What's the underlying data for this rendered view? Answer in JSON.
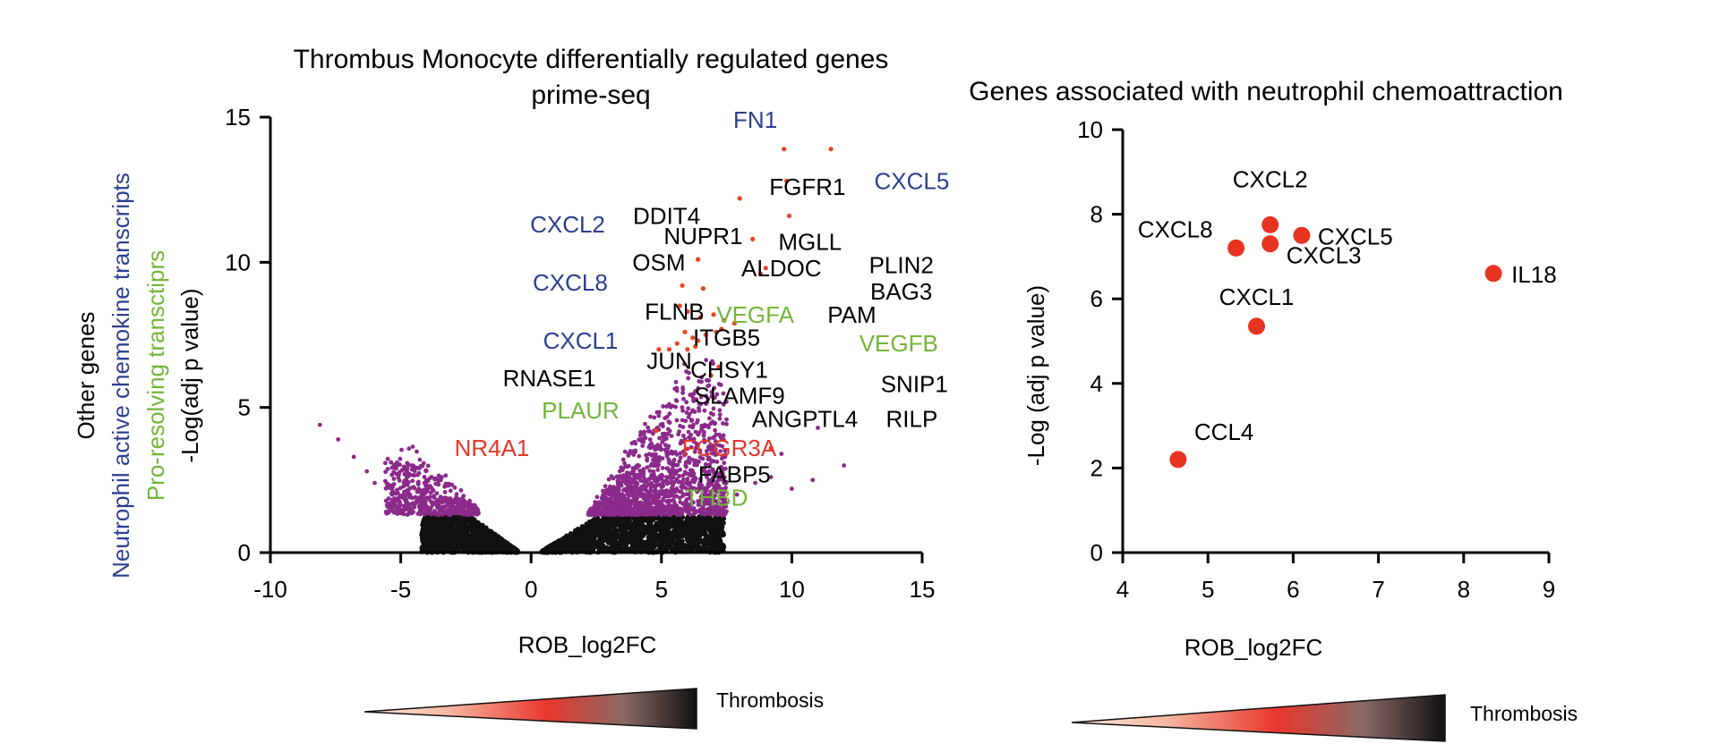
{
  "colors": {
    "axis": "#000000",
    "purple": "#8b2a8b",
    "black_pts": "#111111",
    "orange_pts": "#e8431e",
    "blue": "#2b3f8f",
    "green": "#74b53a",
    "red": "#e0382a",
    "dot": "#e63322"
  },
  "chart_data": [
    {
      "type": "scatter",
      "subtype": "volcano",
      "title": "Thrombus Monocyte differentially regulated genes",
      "subtitle": "prime-seq",
      "xlabel": "ROB_log2FC",
      "ylabel": "-Log(adj p value)",
      "xlim": [
        -10,
        15
      ],
      "ylim": [
        0,
        15
      ],
      "xticks": [
        -10,
        -5,
        0,
        5,
        10,
        15
      ],
      "yticks": [
        0,
        5,
        10,
        15
      ],
      "legend": [
        {
          "label": "Pro-resolving transctiprs",
          "color": "#74b53a"
        },
        {
          "label": "Neutrophil active chemokine transcripts",
          "color": "#2b3f8f"
        },
        {
          "label": "Other genes",
          "color": "#000000"
        }
      ],
      "gene_labels": [
        {
          "text": "FN1",
          "color": "#2b3f8f",
          "x": 8.6,
          "y": 14.9
        },
        {
          "text": "CXCL5",
          "color": "#2b3f8f",
          "x": 14.6,
          "y": 12.8
        },
        {
          "text": "FGFR1",
          "color": "#000000",
          "x": 10.6,
          "y": 12.6
        },
        {
          "text": "DDIT4",
          "color": "#000000",
          "x": 5.2,
          "y": 11.6
        },
        {
          "text": "CXCL2",
          "color": "#2b3f8f",
          "x": 1.4,
          "y": 11.3
        },
        {
          "text": "NUPR1",
          "color": "#000000",
          "x": 6.6,
          "y": 10.9
        },
        {
          "text": "MGLL",
          "color": "#000000",
          "x": 10.7,
          "y": 10.7
        },
        {
          "text": "OSM",
          "color": "#000000",
          "x": 4.9,
          "y": 10.0
        },
        {
          "text": "ALDOC",
          "color": "#000000",
          "x": 9.6,
          "y": 9.8
        },
        {
          "text": "PLIN2",
          "color": "#000000",
          "x": 14.2,
          "y": 9.9
        },
        {
          "text": "CXCL8",
          "color": "#2b3f8f",
          "x": 1.5,
          "y": 9.3
        },
        {
          "text": "BAG3",
          "color": "#000000",
          "x": 14.2,
          "y": 9.0
        },
        {
          "text": "FLNB",
          "color": "#000000",
          "x": 5.5,
          "y": 8.3
        },
        {
          "text": "VEGFA",
          "color": "#74b53a",
          "x": 8.6,
          "y": 8.2
        },
        {
          "text": "PAM",
          "color": "#000000",
          "x": 12.3,
          "y": 8.2
        },
        {
          "text": "CXCL1",
          "color": "#2b3f8f",
          "x": 1.9,
          "y": 7.3
        },
        {
          "text": "ITGB5",
          "color": "#000000",
          "x": 7.5,
          "y": 7.4
        },
        {
          "text": "VEGFB",
          "color": "#74b53a",
          "x": 14.1,
          "y": 7.2
        },
        {
          "text": "JUN",
          "color": "#000000",
          "x": 5.3,
          "y": 6.6
        },
        {
          "text": "CHSY1",
          "color": "#000000",
          "x": 7.6,
          "y": 6.3
        },
        {
          "text": "RNASE1",
          "color": "#000000",
          "x": 0.7,
          "y": 6.0
        },
        {
          "text": "SNIP1",
          "color": "#000000",
          "x": 14.7,
          "y": 5.8
        },
        {
          "text": "SLAMF9",
          "color": "#000000",
          "x": 8.0,
          "y": 5.4
        },
        {
          "text": "PLAUR",
          "color": "#74b53a",
          "x": 1.9,
          "y": 4.9
        },
        {
          "text": "ANGPTL4",
          "color": "#000000",
          "x": 10.5,
          "y": 4.6
        },
        {
          "text": "RILP",
          "color": "#000000",
          "x": 14.6,
          "y": 4.6
        },
        {
          "text": "NR4A1",
          "color": "#e0382a",
          "x": -1.5,
          "y": 3.6
        },
        {
          "text": "FCGR3A",
          "color": "#e0382a",
          "x": 7.6,
          "y": 3.6
        },
        {
          "text": "FABP5",
          "color": "#000000",
          "x": 7.8,
          "y": 2.7
        },
        {
          "text": "THBD",
          "color": "#74b53a",
          "x": 7.1,
          "y": 1.9
        }
      ],
      "gradient_label": "Thrombosis"
    },
    {
      "type": "scatter",
      "title": "Genes associated with neutrophil chemoattraction",
      "xlabel": "ROB_log2FC",
      "ylabel": "-Log (adj p value)",
      "xlim": [
        4,
        9
      ],
      "ylim": [
        0,
        10
      ],
      "xticks": [
        4,
        5,
        6,
        7,
        8,
        9
      ],
      "yticks": [
        0,
        2,
        4,
        6,
        8,
        10
      ],
      "points": [
        {
          "label": "CXCL2",
          "x": 5.73,
          "y": 7.75
        },
        {
          "label": "CXCL8",
          "x": 5.33,
          "y": 7.2
        },
        {
          "label": "CXCL5",
          "x": 6.1,
          "y": 7.5
        },
        {
          "label": "CXCL3",
          "x": 5.73,
          "y": 7.3
        },
        {
          "label": "IL18",
          "x": 8.35,
          "y": 6.6
        },
        {
          "label": "CXCL1",
          "x": 5.57,
          "y": 5.35
        },
        {
          "label": "CCL4",
          "x": 4.65,
          "y": 2.2
        }
      ],
      "gradient_label": "Thrombosis"
    }
  ]
}
